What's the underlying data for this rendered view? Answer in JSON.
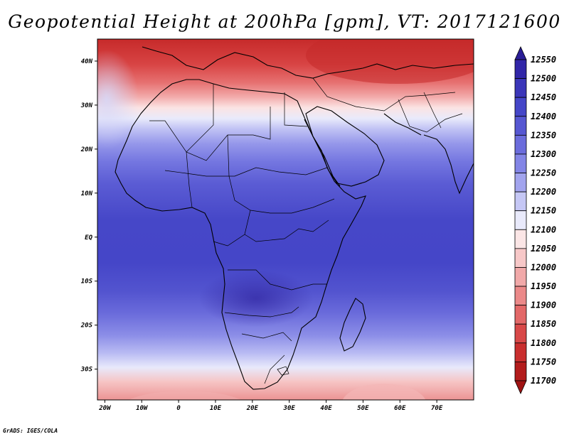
{
  "title": "Geopotential Height at 200hPa [gpm], VT: 2017121600",
  "footer": "GrADS: IGES/COLA",
  "map": {
    "lat_ticks": [
      "40N",
      "30N",
      "20N",
      "10N",
      "EQ",
      "10S",
      "20S",
      "30S"
    ],
    "lon_ticks": [
      "20W",
      "10W",
      "0",
      "10E",
      "20E",
      "30E",
      "40E",
      "50E",
      "60E",
      "70E"
    ],
    "lon_range": [
      -22,
      80
    ],
    "lat_range": [
      -37,
      45
    ]
  },
  "legend": {
    "levels": [
      "12550",
      "12500",
      "12450",
      "12400",
      "12350",
      "12300",
      "12250",
      "12200",
      "12150",
      "12100",
      "12050",
      "12000",
      "11950",
      "11900",
      "11850",
      "11800",
      "11750",
      "11700"
    ],
    "colors": [
      "#2a1d96",
      "#3126a8",
      "#3b36b9",
      "#4546c8",
      "#5657d2",
      "#6b6cdc",
      "#8385e6",
      "#a2a4ee",
      "#c5c7f5",
      "#e9eafb",
      "#fbe6e6",
      "#f7c8c8",
      "#f1a9a9",
      "#eb8989",
      "#e36868",
      "#d84848",
      "#c92e2e",
      "#b31c1c",
      "#a01313"
    ]
  }
}
